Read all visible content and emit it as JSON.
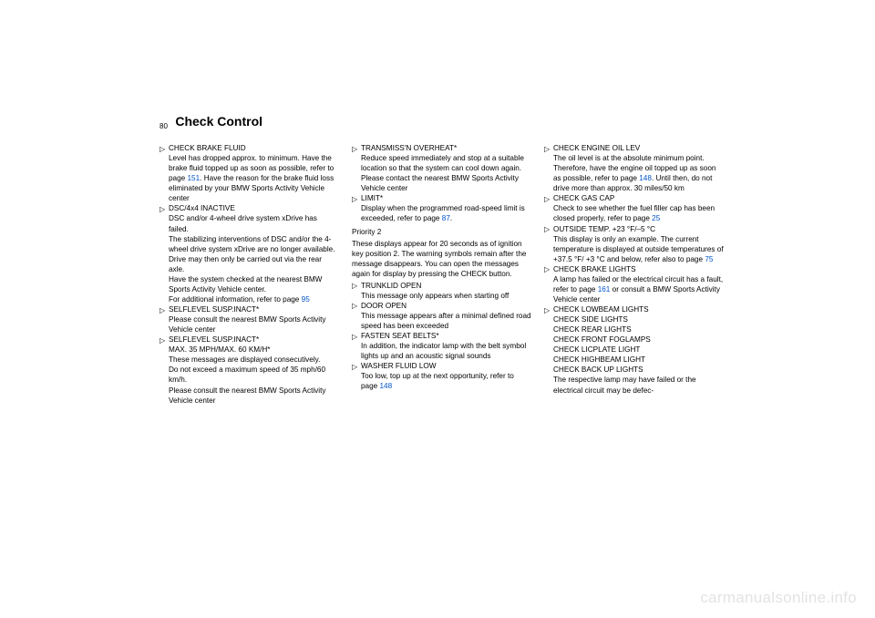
{
  "page_number": "80",
  "title": "Check Control",
  "watermark": "carmanualsonline.info",
  "col1": [
    {
      "title": "CHECK BRAKE FLUID",
      "body_parts": [
        {
          "t": "text",
          "v": "Level has dropped approx. to minimum. Have the brake fluid topped up as soon as possible, refer to page "
        },
        {
          "t": "link",
          "v": "151"
        },
        {
          "t": "text",
          "v": ". Have the reason for the brake fluid loss eliminated by your BMW Sports Activity Vehicle center"
        }
      ]
    },
    {
      "title": "DSC/4x4 INACTIVE",
      "body_parts": [
        {
          "t": "text",
          "v": "DSC and/or 4-wheel drive system xDrive has failed."
        },
        {
          "t": "br"
        },
        {
          "t": "text",
          "v": "The stabilizing interventions of DSC and/or the 4-wheel drive system xDrive are no longer available. Drive may then only be carried out via the rear axle."
        },
        {
          "t": "br"
        },
        {
          "t": "text",
          "v": "Have the system checked at the nearest BMW Sports Activity Vehicle center."
        },
        {
          "t": "br"
        },
        {
          "t": "text",
          "v": "For additional information, refer to page "
        },
        {
          "t": "link",
          "v": "95"
        }
      ]
    },
    {
      "title": "SELFLEVEL SUSP.INACT*",
      "body_parts": [
        {
          "t": "text",
          "v": "Please consult the nearest BMW Sports Activity Vehicle center"
        }
      ]
    },
    {
      "title": "SELFLEVEL SUSP.INACT*",
      "body_parts": [
        {
          "t": "text",
          "v": "MAX. 35 MPH/MAX. 60 KM/H*"
        },
        {
          "t": "br"
        },
        {
          "t": "text",
          "v": "These messages are displayed consecutively."
        },
        {
          "t": "br"
        },
        {
          "t": "text",
          "v": "Do not exceed a maximum speed of 35 mph/60 km/h."
        },
        {
          "t": "br"
        },
        {
          "t": "text",
          "v": "Please consult the nearest BMW Sports Activity Vehicle center"
        }
      ]
    }
  ],
  "col2_top": [
    {
      "title": "TRANSMISS'N OVERHEAT*",
      "body_parts": [
        {
          "t": "text",
          "v": "Reduce speed immediately and stop at a suitable location so that the system can cool down again. Please contact the nearest BMW Sports Activity Vehicle center"
        }
      ]
    },
    {
      "title": "LIMIT*",
      "body_parts": [
        {
          "t": "text",
          "v": "Display when the programmed road-speed limit is exceeded, refer to page "
        },
        {
          "t": "link",
          "v": "87"
        },
        {
          "t": "text",
          "v": "."
        }
      ]
    }
  ],
  "col2_heading": "Priority 2",
  "col2_para": [
    {
      "t": "text",
      "v": "These displays appear for 20 seconds as of ignition key position 2. The warning symbols remain after the message disappears. You can open the messages again for display by pressing the CHECK button."
    }
  ],
  "col2_bottom": [
    {
      "title": "TRUNKLID OPEN",
      "body_parts": [
        {
          "t": "text",
          "v": "This message only appears when starting off"
        }
      ]
    },
    {
      "title": "DOOR OPEN",
      "body_parts": [
        {
          "t": "text",
          "v": "This message appears after a minimal defined road speed has been exceeded"
        }
      ]
    },
    {
      "title": "FASTEN SEAT BELTS*",
      "body_parts": [
        {
          "t": "text",
          "v": "In addition, the indicator lamp with the belt symbol lights up and an acoustic signal sounds"
        }
      ]
    },
    {
      "title": "WASHER FLUID LOW",
      "body_parts": [
        {
          "t": "text",
          "v": "Too low, top up at the next opportunity, refer to page "
        },
        {
          "t": "link",
          "v": "148"
        }
      ]
    }
  ],
  "col3": [
    {
      "title": "CHECK ENGINE OIL LEV",
      "body_parts": [
        {
          "t": "text",
          "v": "The oil level is at the absolute minimum point. Therefore, have the engine oil topped up as soon as possible, refer to page "
        },
        {
          "t": "link",
          "v": "148"
        },
        {
          "t": "text",
          "v": ". Until then, do not drive more than approx. 30 miles/50 km"
        }
      ]
    },
    {
      "title": "CHECK GAS CAP",
      "body_parts": [
        {
          "t": "text",
          "v": "Check to see whether the fuel filler cap has been closed properly, refer to page "
        },
        {
          "t": "link",
          "v": "25"
        }
      ]
    },
    {
      "title": "OUTSIDE TEMP. +23 °F/–5 °C",
      "body_parts": [
        {
          "t": "text",
          "v": "This display is only an example. The current temperature is displayed at outside temperatures of +37.5 °F/ +3 °C and below, refer also to page "
        },
        {
          "t": "link",
          "v": "75"
        }
      ]
    },
    {
      "title": "CHECK BRAKE LIGHTS",
      "body_parts": [
        {
          "t": "text",
          "v": "A lamp has failed or the electrical circuit has a fault, refer to page "
        },
        {
          "t": "link",
          "v": "161"
        },
        {
          "t": "text",
          "v": " or consult a BMW Sports Activity Vehicle center"
        }
      ]
    },
    {
      "title_multi": [
        "CHECK LOWBEAM LIGHTS",
        "CHECK SIDE LIGHTS",
        "CHECK REAR LIGHTS",
        "CHECK FRONT FOGLAMPS",
        "CHECK LICPLATE LIGHT",
        "CHECK HIGHBEAM LIGHT",
        "CHECK BACK UP LIGHTS"
      ],
      "body_parts": [
        {
          "t": "text",
          "v": "The respective lamp may have failed or the electrical circuit may be defec-"
        }
      ]
    }
  ]
}
